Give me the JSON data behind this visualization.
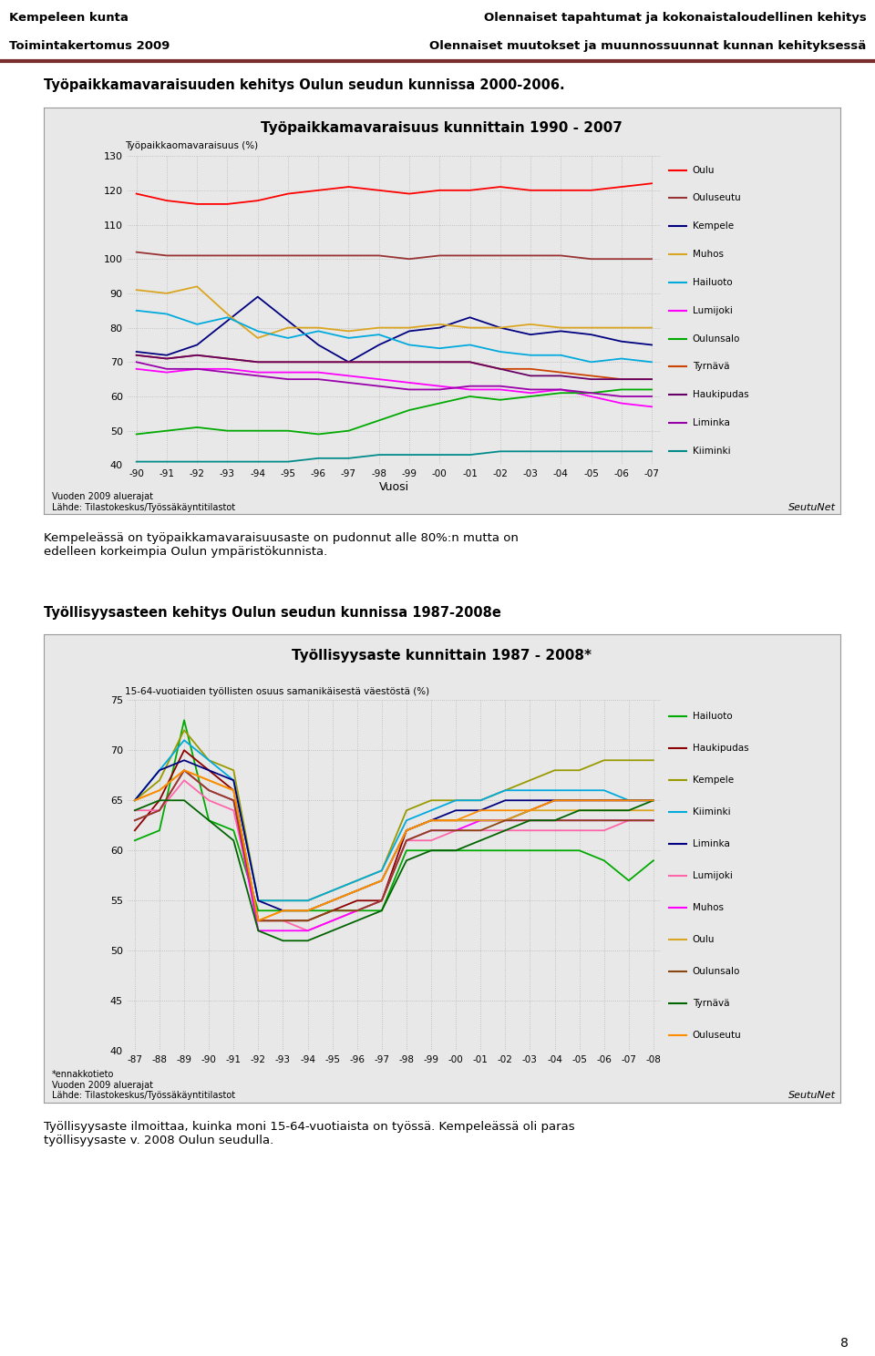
{
  "page_header_left1": "Kempeleen kunta",
  "page_header_left2": "Toimintakertomus 2009",
  "page_header_right1": "Olennaiset tapahtumat ja kokonaistaloudellinen kehitys",
  "page_header_right2": "Olennaiset muutokset ja muunnossuunnat kunnan kehityksessä",
  "header_bar_color": "#7B2C2C",
  "bg_color": "#FFFFFF",
  "chart_bg_color": "#E8E8E8",
  "chart_border_color": "#999999",
  "grid_color": "#AAAAAA",
  "chart1_section_title": "Työpaikkamavaraisuuden kehitys Oulun seudun kunnissa 2000-2006.",
  "chart1_title": "Työpaikkamavaraisuus kunnittain 1990 - 2007",
  "chart1_ylabel": "Työpaikkaomavaraisuus (%)",
  "chart1_xlabel": "Vuosi",
  "chart1_ylim": [
    40,
    130
  ],
  "chart1_yticks": [
    40,
    50,
    60,
    70,
    80,
    90,
    100,
    110,
    120,
    130
  ],
  "chart1_xtick_labels": [
    "-90",
    "-91",
    "-92",
    "-93",
    "-94",
    "-95",
    "-96",
    "-97",
    "-98",
    "-99",
    "-00",
    "-01",
    "-02",
    "-03",
    "-04",
    "-05",
    "-06",
    "-07"
  ],
  "chart1_footnote": "Vuoden 2009 aluerajat\nLähde: Tilastokeskus/Työssäkäyntitilastot",
  "chart1_seutunet": "SeutuNet",
  "chart1_series": {
    "Oulu": {
      "color": "#FF0000",
      "data": [
        119,
        117,
        116,
        116,
        117,
        119,
        120,
        121,
        120,
        119,
        120,
        120,
        121,
        120,
        120,
        120,
        121,
        122
      ]
    },
    "Ouluseutu": {
      "color": "#993333",
      "data": [
        102,
        101,
        101,
        101,
        101,
        101,
        101,
        101,
        101,
        100,
        101,
        101,
        101,
        101,
        101,
        100,
        100,
        100
      ]
    },
    "Kempele": {
      "color": "#000080",
      "data": [
        73,
        72,
        75,
        82,
        89,
        82,
        75,
        70,
        75,
        79,
        80,
        83,
        80,
        78,
        79,
        78,
        76,
        75
      ]
    },
    "Muhos": {
      "color": "#DAA520",
      "data": [
        91,
        90,
        92,
        84,
        77,
        80,
        80,
        79,
        80,
        80,
        81,
        80,
        80,
        81,
        80,
        80,
        80,
        80
      ]
    },
    "Hailuoto": {
      "color": "#00AADD",
      "data": [
        85,
        84,
        81,
        83,
        79,
        77,
        79,
        77,
        78,
        75,
        74,
        75,
        73,
        72,
        72,
        70,
        71,
        70
      ]
    },
    "Lumijoki": {
      "color": "#FF00FF",
      "data": [
        68,
        67,
        68,
        68,
        67,
        67,
        67,
        66,
        65,
        64,
        63,
        62,
        62,
        61,
        62,
        60,
        58,
        57
      ]
    },
    "Oulunsalo": {
      "color": "#00AA00",
      "data": [
        49,
        50,
        51,
        50,
        50,
        50,
        49,
        50,
        53,
        56,
        58,
        60,
        59,
        60,
        61,
        61,
        62,
        62
      ]
    },
    "Tyrnävä": {
      "color": "#CC4400",
      "data": [
        72,
        71,
        72,
        71,
        70,
        70,
        70,
        70,
        70,
        70,
        70,
        70,
        68,
        68,
        67,
        66,
        65,
        65
      ]
    },
    "Haukipudas": {
      "color": "#660066",
      "data": [
        72,
        71,
        72,
        71,
        70,
        70,
        70,
        70,
        70,
        70,
        70,
        70,
        68,
        66,
        66,
        65,
        65,
        65
      ]
    },
    "Liminka": {
      "color": "#9900AA",
      "data": [
        70,
        68,
        68,
        67,
        66,
        65,
        65,
        64,
        63,
        62,
        62,
        63,
        63,
        62,
        62,
        61,
        60,
        60
      ]
    },
    "Kiiminki": {
      "color": "#008B8B",
      "data": [
        41,
        41,
        41,
        41,
        41,
        41,
        42,
        42,
        43,
        43,
        43,
        43,
        44,
        44,
        44,
        44,
        44,
        44
      ]
    }
  },
  "chart1_legend_order": [
    "Oulu",
    "Ouluseutu",
    "Kempele",
    "Muhos",
    "Hailuoto",
    "Lumijoki",
    "Oulunsalo",
    "Tyrnävä",
    "Haukipudas",
    "Liminka",
    "Kiiminki"
  ],
  "text1": "Kempeleässä on työpaikkamavaraisuusaste on pudonnut alle 80%:n mutta on\nedelleen korkeimpia Oulun ympäristökunnista.",
  "chart2_section_title": "Työllisyysasteen kehitys Oulun seudun kunnissa 1987-2008e",
  "chart2_title": "Työllisyysaste kunnittain 1987 - 2008*",
  "chart2_ylabel": "15-64-vuotiaiden työllisten osuus samanikäisestä väestöstä (%)",
  "chart2_ylim": [
    40,
    75
  ],
  "chart2_yticks": [
    40,
    45,
    50,
    55,
    60,
    65,
    70,
    75
  ],
  "chart2_xtick_labels": [
    "-87",
    "-88",
    "-89",
    "-90",
    "-91",
    "-92",
    "-93",
    "-94",
    "-95",
    "-96",
    "-97",
    "-98",
    "-99",
    "-00",
    "-01",
    "-02",
    "-03",
    "-04",
    "-05",
    "-06",
    "-07",
    "-08"
  ],
  "chart2_footnote": "*ennakkotieto\nVuoden 2009 aluerajat\nLähde: Tilastokeskus/Työssäkäyntitilastot",
  "chart2_seutunet": "SeutuNet",
  "chart2_series": {
    "Hailuoto": {
      "color": "#00AA00",
      "data": [
        61,
        62,
        73,
        63,
        62,
        54,
        54,
        54,
        54,
        54,
        54,
        60,
        60,
        60,
        60,
        60,
        60,
        60,
        60,
        59,
        57,
        59
      ]
    },
    "Haukipudas": {
      "color": "#8B0000",
      "data": [
        62,
        65,
        70,
        68,
        66,
        53,
        53,
        53,
        54,
        55,
        55,
        62,
        63,
        63,
        63,
        63,
        64,
        65,
        65,
        65,
        65,
        65
      ]
    },
    "Kempele": {
      "color": "#999900",
      "data": [
        65,
        67,
        72,
        69,
        68,
        55,
        55,
        55,
        56,
        57,
        58,
        64,
        65,
        65,
        65,
        66,
        67,
        68,
        68,
        69,
        69,
        69
      ]
    },
    "Kiiminki": {
      "color": "#00AADD",
      "data": [
        65,
        68,
        71,
        69,
        67,
        55,
        55,
        55,
        56,
        57,
        58,
        63,
        64,
        65,
        65,
        66,
        66,
        66,
        66,
        66,
        65,
        65
      ]
    },
    "Liminka": {
      "color": "#000080",
      "data": [
        65,
        68,
        69,
        68,
        67,
        55,
        54,
        54,
        55,
        56,
        57,
        62,
        63,
        64,
        64,
        65,
        65,
        65,
        65,
        65,
        65,
        65
      ]
    },
    "Lumijoki": {
      "color": "#FF66AA",
      "data": [
        64,
        64,
        67,
        65,
        64,
        53,
        53,
        52,
        53,
        54,
        55,
        61,
        61,
        62,
        62,
        62,
        62,
        62,
        62,
        62,
        63,
        63
      ]
    },
    "Muhos": {
      "color": "#FF00FF",
      "data": [
        63,
        64,
        68,
        66,
        65,
        52,
        52,
        52,
        53,
        54,
        55,
        61,
        62,
        62,
        63,
        63,
        63,
        63,
        63,
        63,
        63,
        63
      ]
    },
    "Oulu": {
      "color": "#DAA520",
      "data": [
        65,
        66,
        68,
        67,
        66,
        53,
        54,
        54,
        55,
        56,
        57,
        62,
        63,
        63,
        63,
        63,
        64,
        64,
        64,
        64,
        64,
        64
      ]
    },
    "Oulunsalo": {
      "color": "#8B4513",
      "data": [
        63,
        64,
        68,
        66,
        65,
        53,
        53,
        53,
        54,
        54,
        55,
        61,
        62,
        62,
        62,
        63,
        63,
        63,
        63,
        63,
        63,
        63
      ]
    },
    "Tyrnävä": {
      "color": "#006400",
      "data": [
        64,
        65,
        65,
        63,
        61,
        52,
        51,
        51,
        52,
        53,
        54,
        59,
        60,
        60,
        61,
        62,
        63,
        63,
        64,
        64,
        64,
        65
      ]
    },
    "Ouluseutu": {
      "color": "#FF8C00",
      "data": [
        65,
        66,
        68,
        67,
        66,
        53,
        54,
        54,
        55,
        56,
        57,
        62,
        63,
        63,
        64,
        64,
        64,
        65,
        65,
        65,
        65,
        65
      ]
    }
  },
  "chart2_legend_order": [
    "Hailuoto",
    "Haukipudas",
    "Kempele",
    "Kiiminki",
    "Liminka",
    "Lumijoki",
    "Muhos",
    "Oulu",
    "Oulunsalo",
    "Tyrnävä",
    "Ouluseutu"
  ],
  "text2": "Työllisyysaste ilmoittaa, kuinka moni 15-64-vuotiaista on työssä. Kempeleässä oli paras\ntyöllisyysaste v. 2008 Oulun seudulla.",
  "page_number": "8"
}
